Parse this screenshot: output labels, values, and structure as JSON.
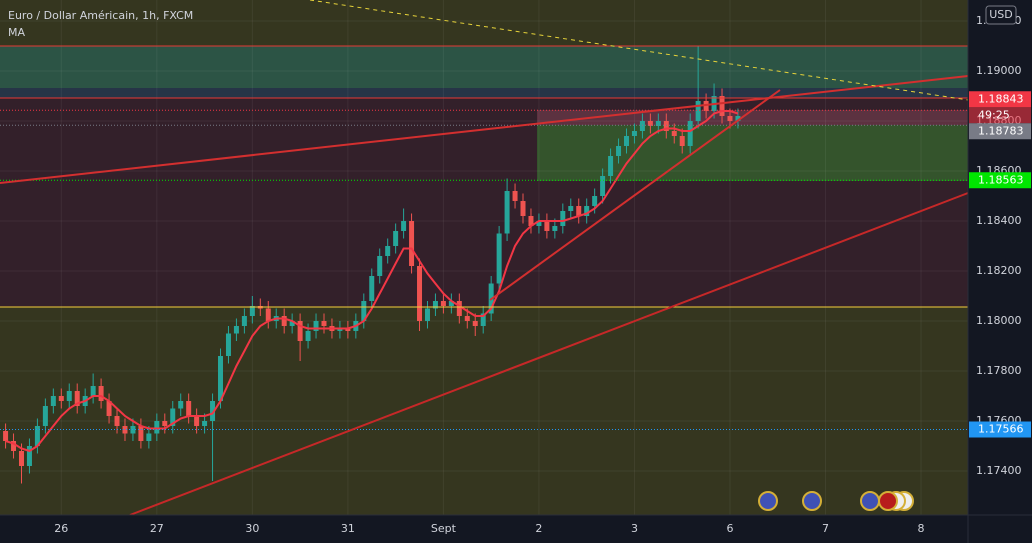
{
  "chart_data": {
    "type": "candlestick",
    "title": "Euro / Dollar Américain, 1h, FXCM",
    "currency": "USD",
    "countdown": "49:25",
    "up_color": "#26a69a",
    "down_color": "#ef5350",
    "open": [
      1.1756,
      1.1752,
      1.1748,
      1.1742,
      1.175,
      1.1758,
      1.1766,
      1.177,
      1.1768,
      1.1772,
      1.1766,
      1.177,
      1.1774,
      1.1768,
      1.1762,
      1.1758,
      1.1755,
      1.1758,
      1.1752,
      1.1755,
      1.176,
      1.1758,
      1.1765,
      1.1768,
      1.1762,
      1.1758,
      1.176,
      1.1768,
      1.1786,
      1.1795,
      1.1798,
      1.1802,
      1.1806,
      1.1805,
      1.18,
      1.1802,
      1.1798,
      1.18,
      1.1792,
      1.1796,
      1.18,
      1.1798,
      1.1796,
      1.1797,
      1.1796,
      1.18,
      1.1808,
      1.1818,
      1.1826,
      1.183,
      1.1836,
      1.184,
      1.1822,
      1.18,
      1.1805,
      1.1808,
      1.1806,
      1.1808,
      1.1802,
      1.18,
      1.1798,
      1.1803,
      1.1815,
      1.1835,
      1.1852,
      1.1848,
      1.1842,
      1.1838,
      1.184,
      1.1836,
      1.1838,
      1.1844,
      1.1846,
      1.1842,
      1.1846,
      1.185,
      1.1858,
      1.1866,
      1.187,
      1.1874,
      1.1876,
      1.188,
      1.1878,
      1.188,
      1.1876,
      1.1874,
      1.187,
      1.188,
      1.1888,
      1.1884,
      1.189,
      1.1882,
      1.188
    ],
    "high": [
      1.1759,
      1.1755,
      1.1751,
      1.1753,
      1.1761,
      1.1769,
      1.1773,
      1.1773,
      1.1775,
      1.1775,
      1.1773,
      1.1779,
      1.1777,
      1.1771,
      1.1765,
      1.1761,
      1.1761,
      1.1761,
      1.1758,
      1.1763,
      1.1763,
      1.1768,
      1.1771,
      1.1771,
      1.1765,
      1.1763,
      1.1771,
      1.1789,
      1.1798,
      1.1801,
      1.1805,
      1.181,
      1.1809,
      1.1808,
      1.1805,
      1.1805,
      1.1803,
      1.1803,
      1.1799,
      1.1803,
      1.1803,
      1.1801,
      1.18,
      1.18,
      1.1803,
      1.1811,
      1.1821,
      1.1829,
      1.1833,
      1.1839,
      1.1845,
      1.1843,
      1.1825,
      1.1808,
      1.1811,
      1.1811,
      1.1811,
      1.1811,
      1.1805,
      1.1803,
      1.1806,
      1.1818,
      1.1838,
      1.1857,
      1.1855,
      1.1851,
      1.1845,
      1.1843,
      1.1843,
      1.1841,
      1.1847,
      1.1849,
      1.1849,
      1.1849,
      1.1853,
      1.1861,
      1.1869,
      1.1873,
      1.1877,
      1.1879,
      1.1883,
      1.1883,
      1.1883,
      1.1883,
      1.1879,
      1.1877,
      1.1883,
      1.191,
      1.1891,
      1.1895,
      1.1893,
      1.1885,
      1.1885
    ],
    "low": [
      1.1749,
      1.1745,
      1.1735,
      1.1739,
      1.1747,
      1.1755,
      1.1763,
      1.1765,
      1.1765,
      1.1763,
      1.1763,
      1.1767,
      1.1765,
      1.1759,
      1.1755,
      1.1752,
      1.1752,
      1.1749,
      1.1749,
      1.1752,
      1.1755,
      1.1755,
      1.1762,
      1.1759,
      1.1755,
      1.1755,
      1.1736,
      1.1765,
      1.1783,
      1.1792,
      1.1795,
      1.1799,
      1.1802,
      1.1797,
      1.1797,
      1.1795,
      1.1795,
      1.1784,
      1.1789,
      1.1793,
      1.1795,
      1.1793,
      1.1793,
      1.1793,
      1.1793,
      1.1797,
      1.1805,
      1.1815,
      1.1823,
      1.1827,
      1.1833,
      1.1819,
      1.1796,
      1.1797,
      1.1802,
      1.1803,
      1.1803,
      1.1799,
      1.1797,
      1.1794,
      1.1795,
      1.18,
      1.1812,
      1.1832,
      1.1845,
      1.1839,
      1.1835,
      1.1835,
      1.1833,
      1.1833,
      1.1835,
      1.1841,
      1.1839,
      1.1839,
      1.1843,
      1.1847,
      1.1855,
      1.1863,
      1.1867,
      1.1871,
      1.1873,
      1.1875,
      1.1875,
      1.1873,
      1.1871,
      1.1867,
      1.1867,
      1.1877,
      1.1881,
      1.1881,
      1.1879,
      1.1877,
      1.1877
    ],
    "close": [
      1.1752,
      1.1748,
      1.1742,
      1.175,
      1.1758,
      1.1766,
      1.177,
      1.1768,
      1.1772,
      1.1766,
      1.177,
      1.1774,
      1.1768,
      1.1762,
      1.1758,
      1.1755,
      1.1758,
      1.1752,
      1.1755,
      1.176,
      1.1758,
      1.1765,
      1.1768,
      1.1762,
      1.1758,
      1.176,
      1.1768,
      1.1786,
      1.1795,
      1.1798,
      1.1802,
      1.1806,
      1.1805,
      1.18,
      1.1802,
      1.1798,
      1.18,
      1.1792,
      1.1796,
      1.18,
      1.1798,
      1.1796,
      1.1797,
      1.1796,
      1.18,
      1.1808,
      1.1818,
      1.1826,
      1.183,
      1.1836,
      1.184,
      1.1822,
      1.18,
      1.1805,
      1.1808,
      1.1806,
      1.1808,
      1.1802,
      1.18,
      1.1798,
      1.1803,
      1.1815,
      1.1835,
      1.1852,
      1.1848,
      1.1842,
      1.1838,
      1.184,
      1.1836,
      1.1838,
      1.1844,
      1.1846,
      1.1842,
      1.1846,
      1.185,
      1.1858,
      1.1866,
      1.187,
      1.1874,
      1.1876,
      1.188,
      1.1878,
      1.188,
      1.1876,
      1.1874,
      1.187,
      1.188,
      1.1888,
      1.1884,
      1.189,
      1.1882,
      1.188,
      1.1882
    ],
    "series": [
      {
        "name": "MA",
        "color": "#f23645",
        "values": [
          1.1752,
          1.1751,
          1.1749,
          1.1748,
          1.175,
          1.1754,
          1.1758,
          1.1762,
          1.1765,
          1.1767,
          1.1768,
          1.177,
          1.177,
          1.1768,
          1.1765,
          1.1762,
          1.176,
          1.1758,
          1.1757,
          1.1757,
          1.1757,
          1.1759,
          1.1761,
          1.1762,
          1.1762,
          1.1762,
          1.1763,
          1.1768,
          1.1775,
          1.1782,
          1.1788,
          1.1794,
          1.1798,
          1.18,
          1.1801,
          1.1801,
          1.18,
          1.1798,
          1.1797,
          1.1797,
          1.1797,
          1.1797,
          1.1797,
          1.1797,
          1.1798,
          1.18,
          1.1805,
          1.1811,
          1.1817,
          1.1823,
          1.1829,
          1.1829,
          1.1824,
          1.1819,
          1.1815,
          1.1811,
          1.1808,
          1.1806,
          1.1804,
          1.1802,
          1.1802,
          1.1805,
          1.1812,
          1.1822,
          1.183,
          1.1835,
          1.1838,
          1.184,
          1.184,
          1.184,
          1.184,
          1.1841,
          1.1842,
          1.1843,
          1.1845,
          1.1848,
          1.1853,
          1.1858,
          1.1863,
          1.1867,
          1.1871,
          1.1874,
          1.1876,
          1.1877,
          1.1877,
          1.1876,
          1.1876,
          1.1878,
          1.188,
          1.1883,
          1.1884,
          1.1884,
          1.1883
        ]
      }
    ],
    "xlim": [
      -0.7,
      120.9
    ],
    "xticks": [
      {
        "value": 7,
        "label": "26"
      },
      {
        "value": 19,
        "label": "27"
      },
      {
        "value": 31,
        "label": "30"
      },
      {
        "value": 43,
        "label": "31"
      },
      {
        "value": 55,
        "label": "Sept"
      },
      {
        "value": 67,
        "label": "2"
      },
      {
        "value": 79,
        "label": "3"
      },
      {
        "value": 91,
        "label": "6"
      },
      {
        "value": 103,
        "label": "7"
      },
      {
        "value": 115,
        "label": "8"
      }
    ],
    "ylim": [
      1.17224,
      1.19284
    ],
    "yticks": [
      {
        "value": 1.174,
        "label": "1.17400"
      },
      {
        "value": 1.176,
        "label": "1.17600"
      },
      {
        "value": 1.178,
        "label": "1.17800"
      },
      {
        "value": 1.18,
        "label": "1.18000"
      },
      {
        "value": 1.182,
        "label": "1.18200"
      },
      {
        "value": 1.184,
        "label": "1.18400"
      },
      {
        "value": 1.186,
        "label": "1.18600"
      },
      {
        "value": 1.188,
        "label": "1.18800"
      },
      {
        "value": 1.19,
        "label": "1.19000"
      },
      {
        "value": 1.192,
        "label": "1.19200"
      }
    ],
    "grid": true,
    "price_lines": [
      {
        "value": 1.18843,
        "color": "#f23645"
      },
      {
        "value": 1.18783,
        "color": "#787b86"
      },
      {
        "value": 1.18563,
        "color": "#00e600"
      },
      {
        "value": 1.17566,
        "color": "#2196f3"
      }
    ]
  }
}
